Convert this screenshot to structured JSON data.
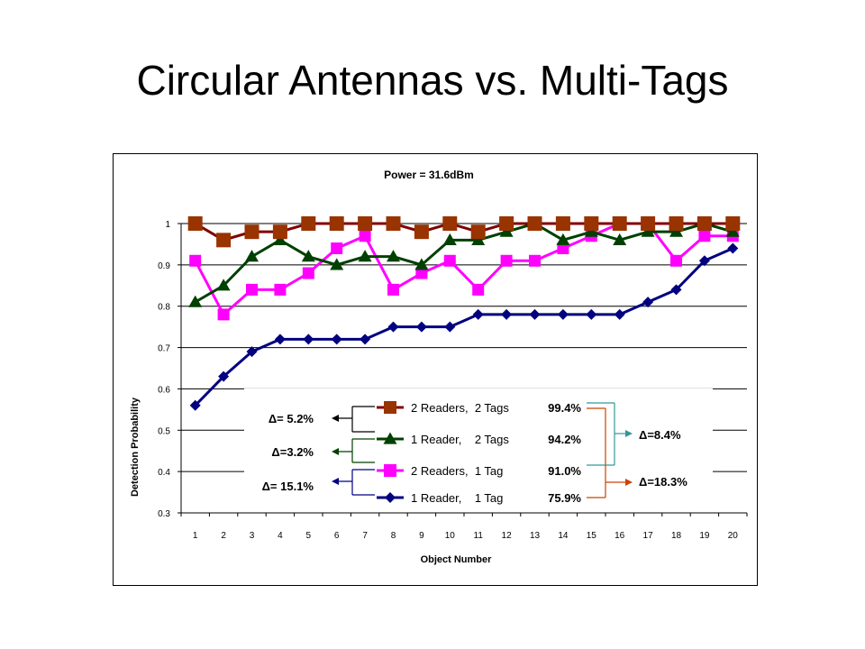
{
  "slide": {
    "title": "Circular Antennas vs. Multi-Tags"
  },
  "chart_data": {
    "type": "line",
    "title": "Power = 31.6dBm",
    "xlabel": "Object Number",
    "ylabel": "Detection Probability",
    "ylim": [
      0.3,
      1.0
    ],
    "yticks": [
      "0.3",
      "0.4",
      "0.5",
      "0.6",
      "0.7",
      "0.8",
      "0.9",
      "1"
    ],
    "x": [
      1,
      2,
      3,
      4,
      5,
      6,
      7,
      8,
      9,
      10,
      11,
      12,
      13,
      14,
      15,
      16,
      17,
      18,
      19,
      20
    ],
    "xticks": [
      "1",
      "2",
      "3",
      "4",
      "5",
      "6",
      "7",
      "8",
      "9",
      "10",
      "11",
      "12",
      "13",
      "14",
      "15",
      "16",
      "17",
      "18",
      "19",
      "20"
    ],
    "grid": "horizontal",
    "series": [
      {
        "line_color": "#800000",
        "marker_color": "#993300",
        "marker": "square",
        "values": [
          1.0,
          0.96,
          0.98,
          0.98,
          1.0,
          1.0,
          1.0,
          1.0,
          0.98,
          1.0,
          0.98,
          1.0,
          1.0,
          1.0,
          1.0,
          1.0,
          1.0,
          1.0,
          1.0,
          1.0
        ]
      },
      {
        "line_color": "#004000",
        "marker_color": "#004000",
        "marker": "triangle",
        "values": [
          0.81,
          0.85,
          0.92,
          0.96,
          0.92,
          0.9,
          0.92,
          0.92,
          0.9,
          0.96,
          0.96,
          0.98,
          1.0,
          0.96,
          0.98,
          0.96,
          0.98,
          0.98,
          1.0,
          0.98
        ]
      },
      {
        "line_color": "#ff00ff",
        "marker_color": "#ff00ff",
        "marker": "square",
        "values": [
          0.91,
          0.78,
          0.84,
          0.84,
          0.88,
          0.94,
          0.97,
          0.84,
          0.88,
          0.91,
          0.84,
          0.91,
          0.91,
          0.94,
          0.97,
          1.0,
          1.0,
          0.91,
          0.97,
          0.97
        ]
      },
      {
        "line_color": "#000080",
        "marker_color": "#000080",
        "marker": "diamond",
        "values": [
          0.56,
          0.63,
          0.69,
          0.72,
          0.72,
          0.72,
          0.72,
          0.75,
          0.75,
          0.75,
          0.78,
          0.78,
          0.78,
          0.78,
          0.78,
          0.78,
          0.81,
          0.84,
          0.91,
          0.94
        ]
      }
    ],
    "legend": [
      {
        "name": "2 Readers,  2 Tags",
        "pct": "99.4%"
      },
      {
        "name": "1 Reader,    2 Tags",
        "pct": "94.2%"
      },
      {
        "name": "2 Readers,  1 Tag",
        "pct": "91.0%"
      },
      {
        "name": "1 Reader,    1 Tag",
        "pct": "75.9%"
      }
    ],
    "annotations": {
      "left_deltas": [
        "Δ=  5.2%",
        "Δ=3.2%",
        "Δ= 15.1%"
      ],
      "right_deltas": [
        "Δ=8.4%",
        "Δ=18.3%"
      ]
    }
  }
}
